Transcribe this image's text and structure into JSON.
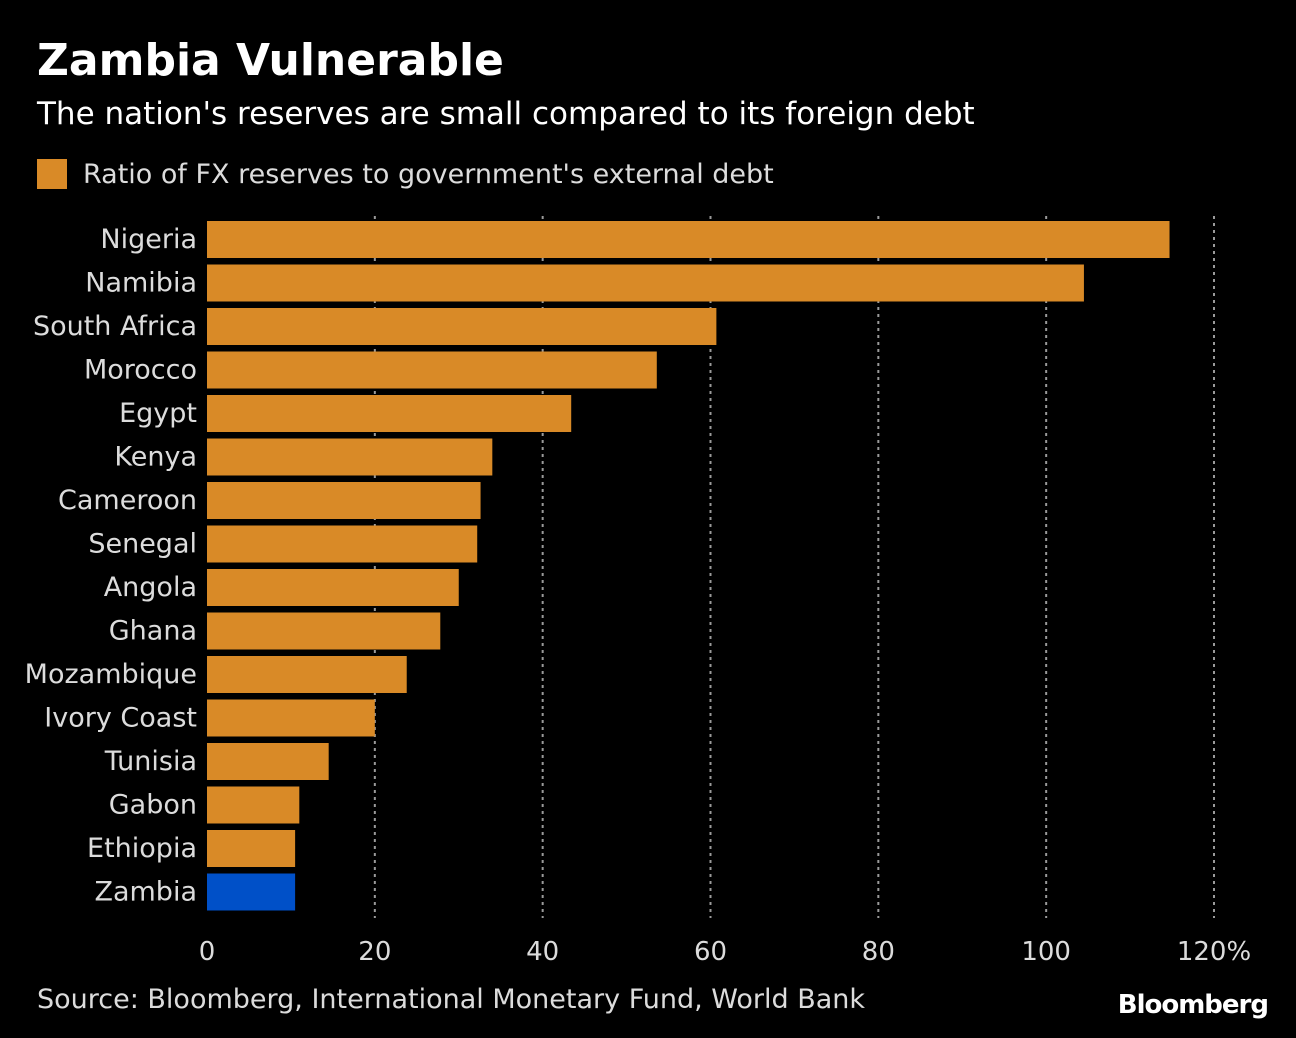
{
  "title": "Zambia Vulnerable",
  "subtitle": "The nation's reserves are small compared to its foreign debt",
  "legend": {
    "label": "Ratio of FX reserves to government's external debt",
    "color": "#d98a27"
  },
  "chart_data": {
    "type": "bar",
    "orientation": "horizontal",
    "title": "Zambia Vulnerable",
    "subtitle": "The nation's reserves are small compared to its foreign debt",
    "xlabel": "",
    "ylabel": "",
    "xlim": [
      0,
      120
    ],
    "ticks": [
      0,
      20,
      40,
      60,
      80,
      100,
      120
    ],
    "tick_labels": [
      "0",
      "20",
      "40",
      "60",
      "80",
      "100",
      "120%"
    ],
    "grid": true,
    "categories": [
      "Nigeria",
      "Namibia",
      "South Africa",
      "Morocco",
      "Egypt",
      "Kenya",
      "Cameroon",
      "Senegal",
      "Angola",
      "Ghana",
      "Mozambique",
      "Ivory Coast",
      "Tunisia",
      "Gabon",
      "Ethiopia",
      "Zambia"
    ],
    "series": [
      {
        "name": "Ratio of FX reserves to government's external debt",
        "values": [
          114.7,
          104.5,
          60.7,
          53.6,
          43.4,
          34.0,
          32.6,
          32.2,
          30.0,
          27.8,
          23.8,
          20.0,
          14.5,
          11.0,
          10.5,
          10.5
        ]
      }
    ],
    "colors": {
      "default": "#d98a27",
      "highlight": "#0050c8"
    },
    "highlight": "Zambia"
  },
  "source": "Source: Bloomberg, International Monetary Fund, World Bank",
  "brand": "Bloomberg"
}
